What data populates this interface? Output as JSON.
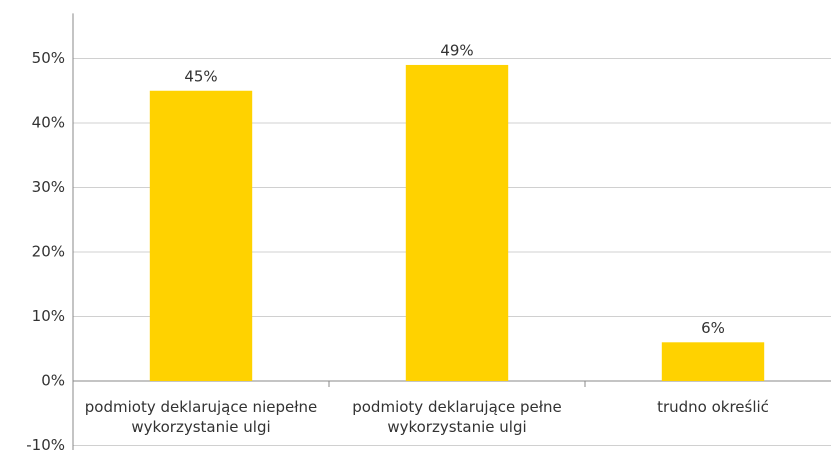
{
  "chart_data": {
    "type": "bar",
    "categories": [
      "podmioty deklarujące niepełne wykorzystanie ulgi",
      "podmioty deklarujące pełne wykorzystanie ulgi",
      "trudno określić"
    ],
    "values": [
      45,
      49,
      6
    ],
    "value_labels": [
      "45%",
      "49%",
      "6%"
    ],
    "color": "#ffd200",
    "ylim": [
      -11,
      57
    ],
    "yticks": [
      {
        "value": -10,
        "label": "-10%"
      },
      {
        "value": 0,
        "label": "0%"
      },
      {
        "value": 10,
        "label": "10%"
      },
      {
        "value": 20,
        "label": "20%"
      },
      {
        "value": 30,
        "label": "30%"
      },
      {
        "value": 40,
        "label": "40%"
      },
      {
        "value": 50,
        "label": "50%"
      }
    ],
    "grid": true
  }
}
